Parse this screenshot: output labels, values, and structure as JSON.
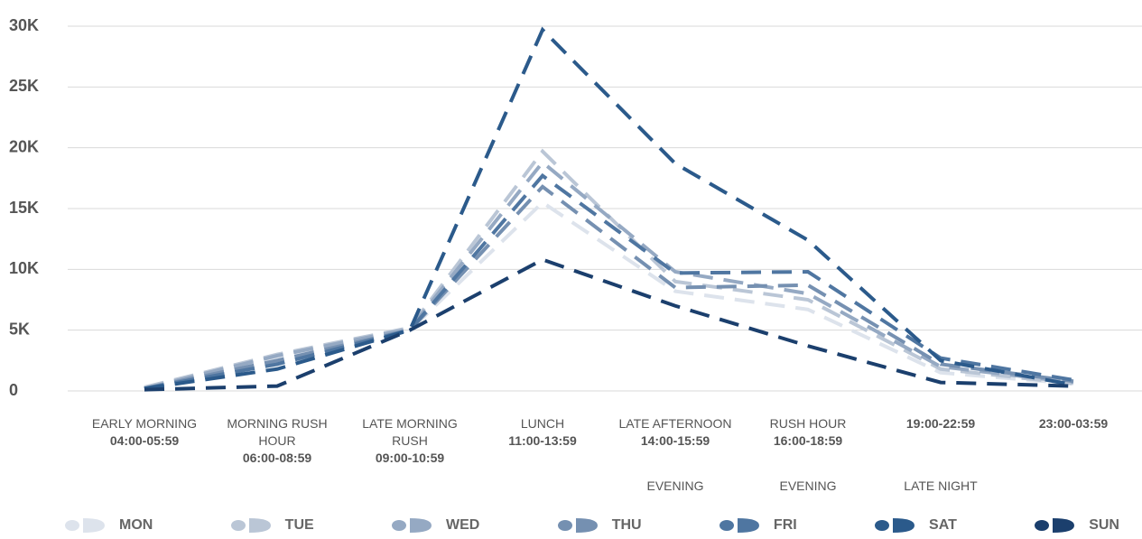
{
  "chart_data": {
    "type": "line",
    "categories": [
      "04:00-05:59",
      "06:00-08:59",
      "09:00-10:59",
      "11:00-13:59",
      "14:00-15:59",
      "16:00-18:59",
      "19:00-22:59",
      "23:00-03:59"
    ],
    "category_labels": [
      "EARLY MORNING",
      "MORNING RUSH HOUR",
      "LATE MORNING RUSH",
      "LUNCH",
      "LATE AFTERNOON",
      "RUSH HOUR",
      null,
      null
    ],
    "category_notes": [
      null,
      null,
      null,
      null,
      "EVENING",
      "EVENING",
      "LATE NIGHT",
      null
    ],
    "series": [
      {
        "name": "MON",
        "color": "#dde3ec",
        "values": [
          300,
          2800,
          5000,
          15500,
          8200,
          6700,
          1500,
          600
        ]
      },
      {
        "name": "TUE",
        "color": "#bac6d6",
        "values": [
          300,
          3000,
          5200,
          19700,
          9000,
          7500,
          1800,
          600
        ]
      },
      {
        "name": "WED",
        "color": "#95a9c3",
        "values": [
          200,
          2900,
          5100,
          18800,
          9800,
          8000,
          2000,
          700
        ]
      },
      {
        "name": "THU",
        "color": "#7590b1",
        "values": [
          200,
          2500,
          5000,
          16800,
          8500,
          8700,
          2200,
          800
        ]
      },
      {
        "name": "FRI",
        "color": "#4f76a1",
        "values": [
          200,
          2200,
          5000,
          17700,
          9700,
          9800,
          2700,
          900
        ]
      },
      {
        "name": "SAT",
        "color": "#2b5a8b",
        "values": [
          200,
          1800,
          5000,
          29700,
          18700,
          12400,
          2500,
          500
        ]
      },
      {
        "name": "SUN",
        "color": "#1b3f6d",
        "values": [
          100,
          400,
          5000,
          10800,
          7000,
          3700,
          700,
          400
        ]
      }
    ],
    "ylim": [
      0,
      30000
    ],
    "yticks": [
      0,
      {
        "value": 5000,
        "label": "5K"
      },
      {
        "value": 10000,
        "label": "10K"
      },
      {
        "value": 15000,
        "label": "15K"
      },
      {
        "value": 20000,
        "label": "20K"
      },
      {
        "value": 25000,
        "label": "25K"
      },
      {
        "value": 30000,
        "label": "30K"
      }
    ],
    "grid": true
  }
}
